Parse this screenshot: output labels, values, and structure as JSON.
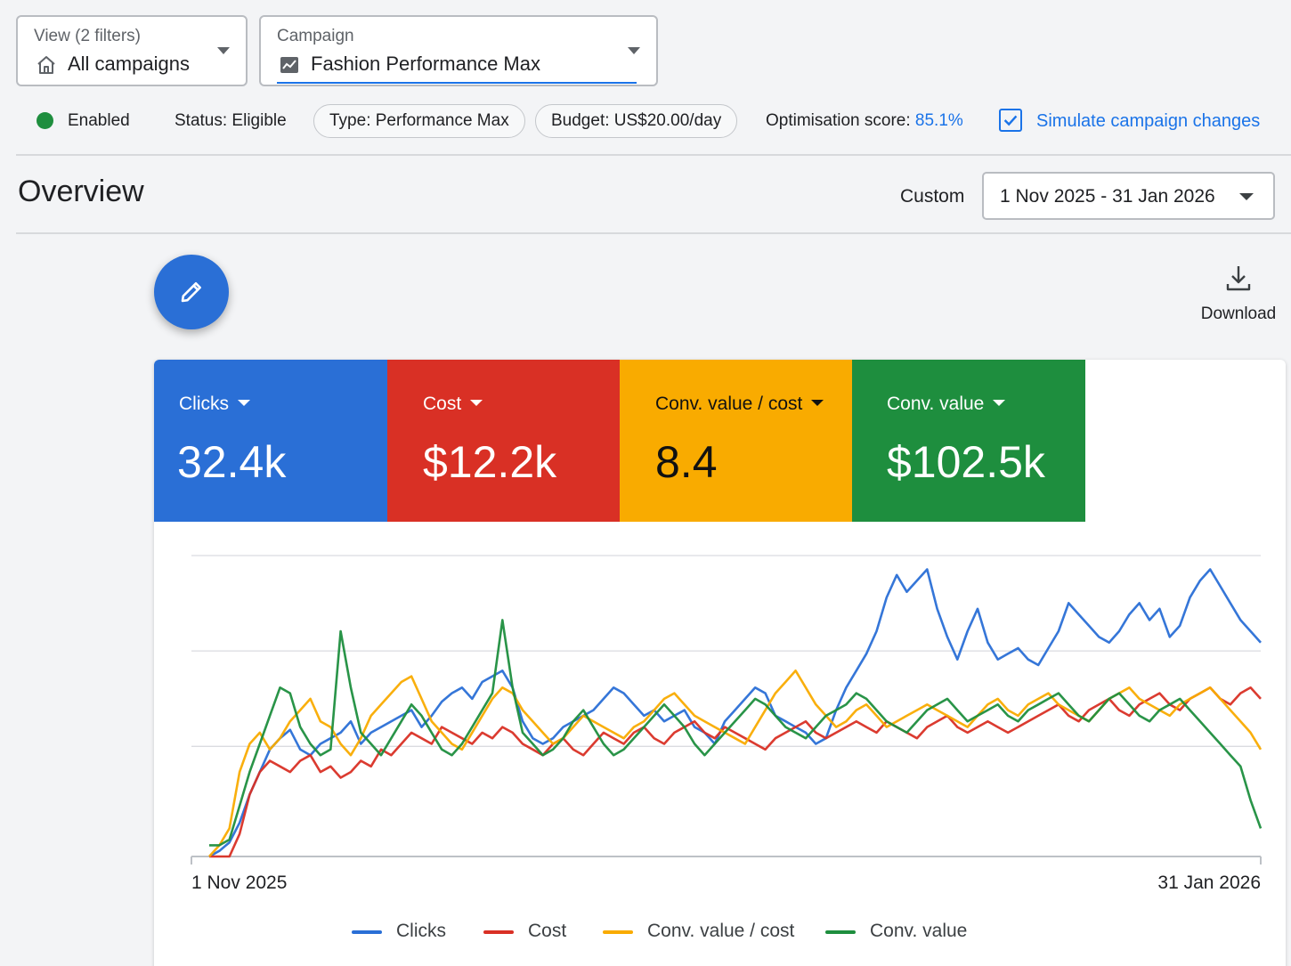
{
  "view_selector": {
    "label": "View (2 filters)",
    "value": "All campaigns",
    "icon": "home-icon"
  },
  "campaign_selector": {
    "label": "Campaign",
    "value": "Fashion Performance Max",
    "icon": "trending-chart-icon"
  },
  "status_row": {
    "enabled": "Enabled",
    "enabled_color": "#1e8e3e",
    "status": "Status: Eligible",
    "type_chip": "Type: Performance Max",
    "budget_chip": "Budget: US$20.00/day",
    "optimisation_label": "Optimisation score:",
    "optimisation_value": "85.1%",
    "simulate_label": "Simulate campaign changes",
    "simulate_checked": true
  },
  "overview": {
    "title": "Overview",
    "range_label": "Custom",
    "date_range": "1 Nov 2025 - 31 Jan 2026"
  },
  "actions": {
    "edit_icon": "pencil-icon",
    "download_label": "Download",
    "download_icon": "download-icon"
  },
  "metrics": [
    {
      "label": "Clicks",
      "value": "32.4k",
      "color": "#2a6fd6"
    },
    {
      "label": "Cost",
      "value": "$12.2k",
      "color": "#d93025"
    },
    {
      "label": "Conv. value / cost",
      "value": "8.4",
      "color": "#f9ab00"
    },
    {
      "label": "Conv. value",
      "value": "$102.5k",
      "color": "#1e8e3e"
    }
  ],
  "chart_data": {
    "type": "line",
    "x_tick_labels": [
      "1 Nov 2025",
      "31 Jan 2026"
    ],
    "grid": true,
    "legend_position": "bottom",
    "series": [
      {
        "name": "Clicks",
        "color": "#2a6fd6",
        "values": [
          0,
          2,
          5,
          12,
          22,
          30,
          38,
          42,
          45,
          38,
          36,
          40,
          42,
          44,
          48,
          40,
          44,
          46,
          48,
          50,
          52,
          46,
          50,
          55,
          58,
          60,
          56,
          62,
          64,
          66,
          60,
          48,
          42,
          40,
          42,
          46,
          48,
          50,
          52,
          56,
          60,
          58,
          54,
          50,
          52,
          48,
          50,
          52,
          46,
          44,
          40,
          48,
          52,
          56,
          60,
          58,
          50,
          48,
          46,
          44,
          40,
          42,
          52,
          60,
          66,
          72,
          80,
          92,
          100,
          94,
          98,
          102,
          88,
          78,
          70,
          80,
          88,
          76,
          70,
          72,
          74,
          70,
          68,
          74,
          80,
          90,
          86,
          82,
          78,
          76,
          80,
          86,
          90,
          84,
          88,
          78,
          82,
          92,
          98,
          102,
          96,
          90,
          84,
          80,
          76
        ]
      },
      {
        "name": "Cost",
        "color": "#d93025",
        "values": [
          0,
          0,
          0,
          8,
          22,
          30,
          34,
          32,
          30,
          34,
          36,
          30,
          32,
          28,
          30,
          34,
          32,
          38,
          36,
          40,
          44,
          42,
          40,
          46,
          44,
          42,
          40,
          44,
          42,
          46,
          44,
          40,
          38,
          36,
          40,
          42,
          38,
          36,
          40,
          44,
          42,
          40,
          44,
          46,
          42,
          40,
          44,
          46,
          48,
          44,
          42,
          46,
          44,
          42,
          40,
          38,
          42,
          44,
          46,
          48,
          44,
          42,
          44,
          46,
          48,
          46,
          44,
          48,
          46,
          44,
          42,
          46,
          48,
          50,
          46,
          44,
          46,
          48,
          46,
          44,
          46,
          48,
          50,
          52,
          54,
          50,
          48,
          52,
          54,
          56,
          52,
          50,
          54,
          56,
          58,
          54,
          52,
          56,
          58,
          60,
          56,
          54,
          58,
          60,
          56
        ]
      },
      {
        "name": "Conv. value / cost",
        "color": "#f9ab00",
        "values": [
          0,
          4,
          10,
          30,
          40,
          44,
          38,
          42,
          48,
          52,
          56,
          48,
          46,
          40,
          36,
          42,
          50,
          54,
          58,
          62,
          64,
          56,
          48,
          44,
          40,
          38,
          44,
          50,
          56,
          60,
          58,
          52,
          48,
          44,
          40,
          42,
          46,
          50,
          48,
          46,
          44,
          42,
          46,
          48,
          52,
          56,
          58,
          54,
          50,
          48,
          46,
          44,
          42,
          40,
          46,
          52,
          58,
          62,
          66,
          60,
          54,
          50,
          46,
          48,
          52,
          54,
          50,
          46,
          48,
          50,
          52,
          54,
          52,
          50,
          48,
          46,
          50,
          54,
          56,
          52,
          50,
          54,
          56,
          58,
          54,
          52,
          50,
          48,
          52,
          56,
          58,
          60,
          56,
          54,
          52,
          50,
          54,
          56,
          58,
          60,
          56,
          52,
          48,
          44,
          38
        ]
      },
      {
        "name": "Conv. value",
        "color": "#1e8e3e",
        "values": [
          4,
          4,
          6,
          18,
          30,
          40,
          50,
          60,
          58,
          46,
          40,
          36,
          38,
          80,
          60,
          44,
          40,
          36,
          42,
          48,
          54,
          50,
          44,
          38,
          36,
          40,
          46,
          52,
          58,
          84,
          60,
          44,
          40,
          36,
          38,
          42,
          48,
          52,
          46,
          40,
          36,
          38,
          42,
          46,
          50,
          54,
          50,
          46,
          40,
          36,
          40,
          44,
          48,
          52,
          56,
          54,
          50,
          46,
          44,
          42,
          46,
          50,
          52,
          54,
          58,
          56,
          52,
          48,
          46,
          44,
          48,
          52,
          54,
          56,
          52,
          48,
          50,
          52,
          54,
          50,
          48,
          52,
          54,
          56,
          58,
          54,
          50,
          48,
          52,
          56,
          58,
          54,
          50,
          48,
          52,
          54,
          56,
          52,
          48,
          44,
          40,
          36,
          32,
          20,
          10
        ]
      }
    ]
  }
}
